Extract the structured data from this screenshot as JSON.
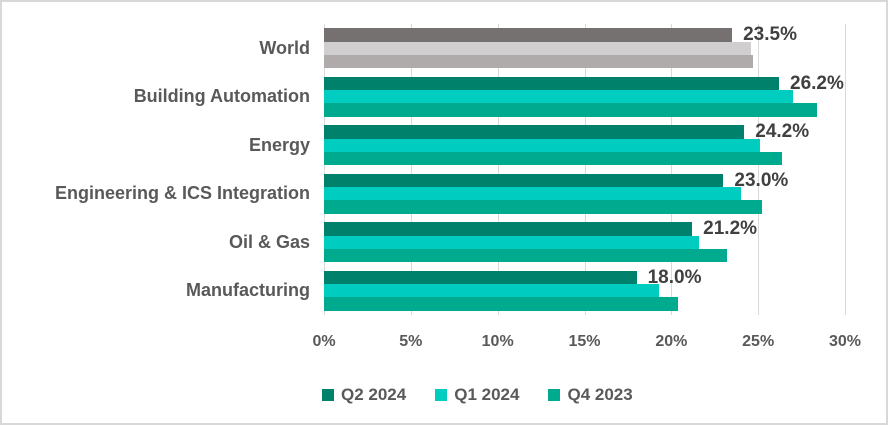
{
  "chart_data": {
    "type": "bar",
    "orientation": "horizontal-grouped",
    "title": "",
    "xlabel": "",
    "ylabel": "",
    "categories": [
      "World",
      "Building Automation",
      "Energy",
      "Engineering & ICS Integration",
      "Oil & Gas",
      "Manufacturing"
    ],
    "series": [
      {
        "name": "Q2 2024",
        "color": "#00816c",
        "values": [
          23.5,
          26.2,
          24.2,
          23.0,
          21.2,
          18.0
        ]
      },
      {
        "name": "Q1 2024",
        "color": "#00ccc0",
        "values": [
          24.6,
          27.0,
          25.1,
          24.0,
          21.6,
          19.3
        ]
      },
      {
        "name": "Q4 2023",
        "color": "#00aa8f",
        "values": [
          24.7,
          28.4,
          26.4,
          25.2,
          23.2,
          20.4
        ]
      }
    ],
    "world_category_series_colors": [
      "#767171",
      "#d0cece",
      "#afabab"
    ],
    "data_labels": [
      "23.5%",
      "26.2%",
      "24.2%",
      "23.0%",
      "21.2%",
      "18.0%"
    ],
    "data_label_series": "Q2 2024",
    "x_ticks": [
      "0%",
      "5%",
      "10%",
      "15%",
      "20%",
      "25%",
      "30%"
    ],
    "xlim": [
      0,
      30
    ],
    "grid": "vertical",
    "gridline_color": "#d9d9d9",
    "legend_position": "bottom",
    "colors": {
      "data_label_text": "#404040",
      "axis_text": "#595959",
      "figure_border": "#d8d8d8",
      "background": "#ffffff"
    }
  }
}
